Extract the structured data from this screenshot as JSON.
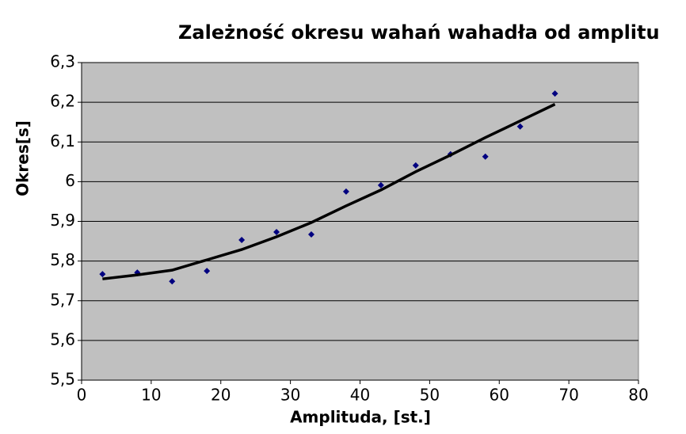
{
  "chart_data": {
    "type": "scatter",
    "title": "Zależność okresu wahań wahadła od amplitu",
    "x_label": "Amplituda, [st.]",
    "y_label": "Okres[s]",
    "x": [
      3,
      8,
      13,
      18,
      23,
      28,
      33,
      38,
      43,
      48,
      53,
      58,
      63,
      68
    ],
    "series": [
      {
        "type": "scatter",
        "color": "#000080",
        "values": [
          5.767,
          5.771,
          5.749,
          5.775,
          5.853,
          5.873,
          5.867,
          5.975,
          5.991,
          6.041,
          6.069,
          6.063,
          6.139,
          6.222
        ]
      },
      {
        "type": "line",
        "color": "#000000",
        "values": [
          5.755,
          5.765,
          5.777,
          5.803,
          5.829,
          5.861,
          5.897,
          5.939,
          5.979,
          6.025,
          6.067,
          6.111,
          6.153,
          6.195
        ]
      }
    ],
    "xlim": [
      0,
      80
    ],
    "xticks": [
      0,
      10,
      20,
      30,
      40,
      50,
      60,
      70,
      80
    ],
    "ylim": [
      5.5,
      6.3
    ],
    "yticks": [
      {
        "value": 5.5,
        "label": "5,5"
      },
      {
        "value": 5.6,
        "label": "5,6"
      },
      {
        "value": 5.7,
        "label": "5,7"
      },
      {
        "value": 5.8,
        "label": "5,8"
      },
      {
        "value": 5.9,
        "label": "5,9"
      },
      6,
      {
        "value": 6.1,
        "label": "6,1"
      },
      {
        "value": 6.2,
        "label": "6,2"
      },
      {
        "value": 6.3,
        "label": "6,3"
      }
    ],
    "grid": true,
    "plot_background": "#c0c0c0"
  }
}
